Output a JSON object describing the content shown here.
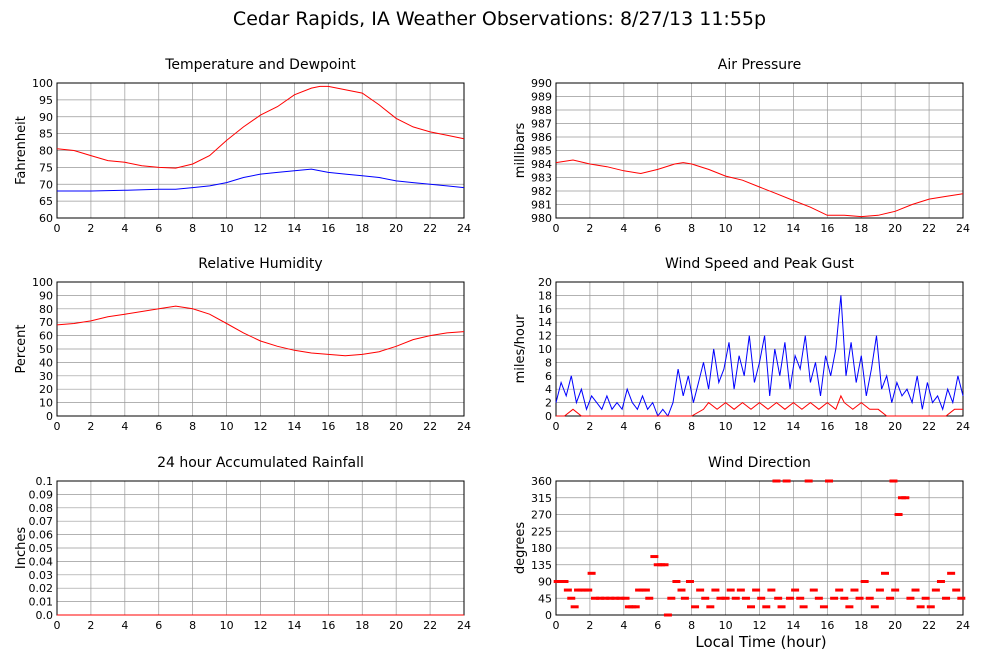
{
  "page_title": "Cedar Rapids, IA Weather Observations: 8/27/13 11:55p",
  "x_axis_title": "Local Time (hour)",
  "colors": {
    "primary_series": "#ff0000",
    "secondary_series": "#0000ff",
    "grid": "#999999"
  },
  "chart_data": [
    {
      "id": "temperature",
      "type": "line",
      "title": "Temperature and Dewpoint",
      "ylabel": "Fahrenheit",
      "xlim": [
        0,
        24
      ],
      "ylim": [
        60,
        100
      ],
      "x_ticks": [
        0,
        2,
        4,
        6,
        8,
        10,
        12,
        14,
        16,
        18,
        20,
        22,
        24
      ],
      "y_ticks": [
        60,
        65,
        70,
        75,
        80,
        85,
        90,
        95,
        100
      ],
      "series": [
        {
          "color": "#ff0000",
          "x": [
            0,
            1,
            2,
            3,
            4,
            5,
            6,
            7,
            8,
            9,
            10,
            11,
            12,
            13,
            14,
            15,
            15.5,
            16,
            17,
            18,
            19,
            20,
            21,
            22,
            23,
            24
          ],
          "y": [
            80.5,
            80,
            78.5,
            77,
            76.5,
            75.5,
            75,
            74.8,
            76,
            78.5,
            83,
            87,
            90.5,
            93,
            96.5,
            98.5,
            99,
            99,
            98,
            97,
            93.5,
            89.5,
            87,
            85.5,
            84.5,
            83.5
          ]
        },
        {
          "color": "#0000ff",
          "x": [
            0,
            2,
            4,
            6,
            7,
            8,
            9,
            10,
            11,
            12,
            13,
            14,
            15,
            16,
            17,
            18,
            19,
            20,
            21,
            22,
            23,
            24
          ],
          "y": [
            68,
            68,
            68.2,
            68.5,
            68.5,
            69,
            69.5,
            70.5,
            72,
            73,
            73.5,
            74,
            74.5,
            73.5,
            73,
            72.5,
            72,
            71,
            70.5,
            70,
            69.5,
            69
          ]
        }
      ]
    },
    {
      "id": "pressure",
      "type": "line",
      "title": "Air Pressure",
      "ylabel": "millibars",
      "xlim": [
        0,
        24
      ],
      "ylim": [
        980,
        990
      ],
      "x_ticks": [
        0,
        2,
        4,
        6,
        8,
        10,
        12,
        14,
        16,
        18,
        20,
        22,
        24
      ],
      "y_ticks": [
        980,
        981,
        982,
        983,
        984,
        985,
        986,
        987,
        988,
        989,
        990
      ],
      "series": [
        {
          "color": "#ff0000",
          "x": [
            0,
            1,
            2,
            3,
            4,
            5,
            6,
            7,
            7.5,
            8,
            9,
            10,
            11,
            12,
            13,
            14,
            15,
            16,
            17,
            18,
            19,
            20,
            21,
            22,
            23,
            24
          ],
          "y": [
            984.1,
            984.3,
            984,
            983.8,
            983.5,
            983.3,
            983.6,
            984,
            984.1,
            984,
            983.6,
            983.1,
            982.8,
            982.3,
            981.8,
            981.3,
            980.8,
            980.2,
            980.2,
            980.1,
            980.2,
            980.5,
            981,
            981.4,
            981.6,
            981.8
          ]
        }
      ]
    },
    {
      "id": "humidity",
      "type": "line",
      "title": "Relative Humidity",
      "ylabel": "Percent",
      "xlim": [
        0,
        24
      ],
      "ylim": [
        0,
        100
      ],
      "x_ticks": [
        0,
        2,
        4,
        6,
        8,
        10,
        12,
        14,
        16,
        18,
        20,
        22,
        24
      ],
      "y_ticks": [
        0,
        10,
        20,
        30,
        40,
        50,
        60,
        70,
        80,
        90,
        100
      ],
      "series": [
        {
          "color": "#ff0000",
          "x": [
            0,
            1,
            2,
            3,
            4,
            5,
            6,
            7,
            8,
            9,
            10,
            11,
            12,
            13,
            14,
            15,
            16,
            17,
            18,
            19,
            20,
            21,
            22,
            23,
            24
          ],
          "y": [
            68,
            69,
            71,
            74,
            76,
            78,
            80,
            82,
            80,
            76,
            69,
            62,
            56,
            52,
            49,
            47,
            46,
            45,
            46,
            48,
            52,
            57,
            60,
            62,
            63
          ]
        }
      ]
    },
    {
      "id": "wind_speed",
      "type": "line",
      "title": "Wind Speed and Peak Gust",
      "ylabel": "miles/hour",
      "xlim": [
        0,
        24
      ],
      "ylim": [
        0,
        20
      ],
      "x_ticks": [
        0,
        2,
        4,
        6,
        8,
        10,
        12,
        14,
        16,
        18,
        20,
        22,
        24
      ],
      "y_ticks": [
        0,
        2,
        4,
        6,
        8,
        10,
        12,
        14,
        16,
        18,
        20
      ],
      "series": [
        {
          "color": "#0000ff",
          "x": [
            0,
            0.3,
            0.6,
            0.9,
            1.2,
            1.5,
            1.8,
            2.1,
            2.4,
            2.7,
            3,
            3.3,
            3.6,
            3.9,
            4.2,
            4.5,
            4.8,
            5.1,
            5.4,
            5.7,
            6,
            6.3,
            6.6,
            6.9,
            7.2,
            7.5,
            7.8,
            8.1,
            8.4,
            8.7,
            9,
            9.3,
            9.6,
            9.9,
            10.2,
            10.5,
            10.8,
            11.1,
            11.4,
            11.7,
            12,
            12.3,
            12.6,
            12.9,
            13.2,
            13.5,
            13.8,
            14.1,
            14.4,
            14.7,
            15,
            15.3,
            15.6,
            15.9,
            16.2,
            16.5,
            16.8,
            17.1,
            17.4,
            17.7,
            18,
            18.3,
            18.6,
            18.9,
            19.2,
            19.5,
            19.8,
            20.1,
            20.4,
            20.7,
            21,
            21.3,
            21.6,
            21.9,
            22.2,
            22.5,
            22.8,
            23.1,
            23.4,
            23.7,
            24
          ],
          "y": [
            2,
            5,
            3,
            6,
            2,
            4,
            1,
            3,
            2,
            1,
            3,
            1,
            2,
            1,
            4,
            2,
            1,
            3,
            1,
            2,
            0,
            1,
            0,
            2,
            7,
            3,
            6,
            2,
            5,
            8,
            4,
            10,
            5,
            7,
            11,
            4,
            9,
            6,
            12,
            5,
            8,
            12,
            3,
            10,
            6,
            11,
            4,
            9,
            7,
            12,
            5,
            8,
            3,
            9,
            6,
            10,
            18,
            6,
            11,
            5,
            9,
            3,
            7,
            12,
            4,
            6,
            2,
            5,
            3,
            4,
            2,
            6,
            1,
            5,
            2,
            3,
            1,
            4,
            2,
            6,
            3
          ]
        },
        {
          "color": "#ff0000",
          "x": [
            0,
            0.5,
            1,
            1.5,
            2,
            3,
            4,
            5,
            6,
            7,
            8,
            8.7,
            9,
            9.5,
            10,
            10.5,
            11,
            11.5,
            12,
            12.5,
            13,
            13.5,
            14,
            14.5,
            15,
            15.5,
            16,
            16.5,
            16.8,
            17,
            17.5,
            18,
            18.5,
            19,
            19.5,
            20,
            21,
            22,
            23,
            23.5,
            24
          ],
          "y": [
            0,
            0,
            1,
            0,
            0,
            0,
            0,
            0,
            0,
            0,
            0,
            1,
            2,
            1,
            2,
            1,
            2,
            1,
            2,
            1,
            2,
            1,
            2,
            1,
            2,
            1,
            2,
            1,
            3,
            2,
            1,
            2,
            1,
            1,
            0,
            0,
            0,
            0,
            0,
            1,
            1
          ]
        }
      ]
    },
    {
      "id": "rainfall",
      "type": "line",
      "title": "24 hour Accumulated Rainfall",
      "ylabel": "Inches",
      "xlim": [
        0,
        24
      ],
      "ylim": [
        0,
        0.1
      ],
      "x_ticks": [
        0,
        2,
        4,
        6,
        8,
        10,
        12,
        14,
        16,
        18,
        20,
        22,
        24
      ],
      "y_ticks": [
        "0.0",
        "0.01",
        "0.02",
        "0.03",
        "0.04",
        "0.05",
        "0.06",
        "0.07",
        "0.08",
        "0.09",
        "0.1"
      ],
      "series": [
        {
          "color": "#ff0000",
          "x": [
            0,
            24
          ],
          "y": [
            0,
            0
          ]
        }
      ]
    },
    {
      "id": "wind_direction",
      "type": "scatter",
      "title": "Wind Direction",
      "ylabel": "degrees",
      "xlim": [
        0,
        24
      ],
      "ylim": [
        0,
        360
      ],
      "x_ticks": [
        0,
        2,
        4,
        6,
        8,
        10,
        12,
        14,
        16,
        18,
        20,
        22,
        24
      ],
      "y_ticks": [
        0,
        45,
        90,
        135,
        180,
        225,
        270,
        315,
        360
      ],
      "series": [
        {
          "color": "#ff0000",
          "x": [
            0.1,
            0.3,
            0.5,
            0.7,
            0.9,
            1.1,
            1.3,
            1.5,
            1.7,
            1.9,
            2.1,
            2.3,
            2.6,
            2.9,
            3.2,
            3.5,
            3.8,
            4.1,
            4.3,
            4.5,
            4.7,
            4.9,
            5.1,
            5.3,
            5.5,
            5.8,
            6,
            6.2,
            6.4,
            6.6,
            6.8,
            7.1,
            7.4,
            7.6,
            7.9,
            8.2,
            8.5,
            8.8,
            9.1,
            9.4,
            9.7,
            10,
            10.3,
            10.6,
            10.9,
            11.2,
            11.5,
            11.8,
            12.1,
            12.4,
            12.7,
            13,
            13.1,
            13.3,
            13.6,
            13.8,
            14.1,
            14.4,
            14.6,
            14.9,
            15.2,
            15.5,
            15.8,
            16.1,
            16.4,
            16.7,
            17,
            17.3,
            17.6,
            17.9,
            18.2,
            18.5,
            18.8,
            19.1,
            19.4,
            19.7,
            19.9,
            20,
            20.2,
            20.4,
            20.6,
            20.9,
            21.2,
            21.5,
            21.8,
            22.1,
            22.4,
            22.7,
            23,
            23.3,
            23.6,
            23.9
          ],
          "y": [
            90,
            90,
            90,
            67,
            45,
            22,
            67,
            67,
            67,
            67,
            112,
            45,
            45,
            45,
            45,
            45,
            45,
            45,
            22,
            22,
            22,
            67,
            67,
            67,
            45,
            157,
            135,
            135,
            135,
            0,
            45,
            90,
            67,
            45,
            90,
            22,
            67,
            45,
            22,
            67,
            45,
            45,
            67,
            45,
            67,
            45,
            22,
            67,
            45,
            22,
            67,
            360,
            45,
            22,
            360,
            45,
            67,
            45,
            22,
            360,
            67,
            45,
            22,
            360,
            45,
            67,
            45,
            22,
            67,
            45,
            90,
            45,
            22,
            67,
            112,
            45,
            360,
            67,
            270,
            315,
            315,
            45,
            67,
            22,
            45,
            22,
            67,
            90,
            45,
            112,
            67,
            45
          ]
        }
      ]
    }
  ]
}
